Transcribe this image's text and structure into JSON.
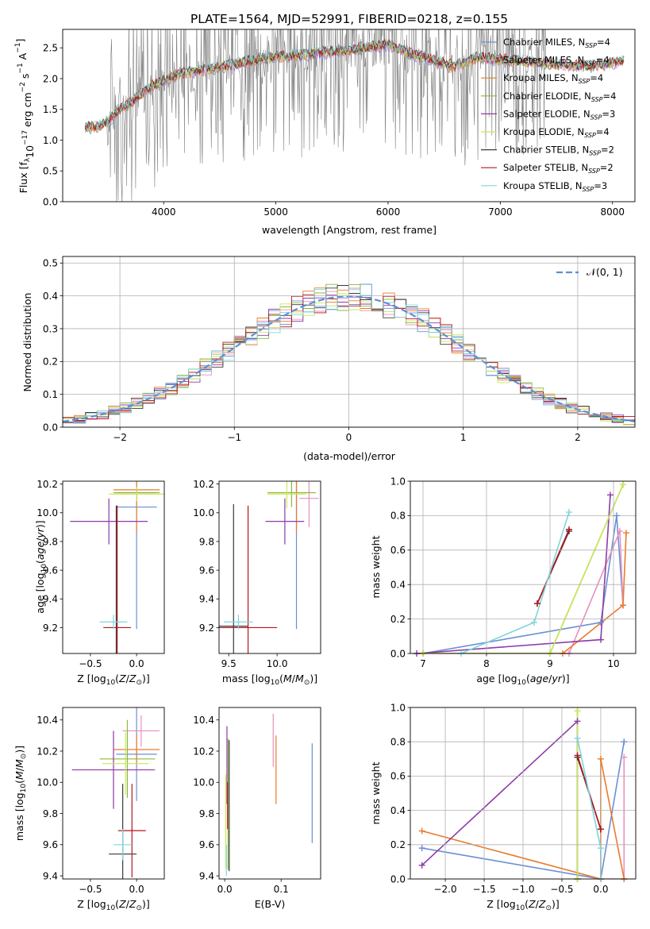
{
  "figure_title": "PLATE=1564, MJD=52991, FIBERID=0218, z=0.155",
  "colors": {
    "chabrier_miles": "#6a8fd6",
    "salpeter_miles": "#e88fc0",
    "kroupa_miles": "#ea7a2c",
    "chabrier_elodie": "#8fb83a",
    "salpeter_elodie": "#8e3aa6",
    "kroupa_elodie": "#c8e85a",
    "chabrier_stelib": "#3a3a3a",
    "salpeter_stelib": "#b5161c",
    "kroupa_stelib": "#7fd6dd",
    "data": "#808080",
    "normal": "#5b8fd6"
  },
  "chart_data": [
    {
      "id": "spectrum",
      "type": "line",
      "xlabel": "wavelength [Angstrom, rest frame]",
      "ylabel": "Flux [f_λ 10^-17 erg cm^-2 s^-1 A^-1]",
      "xlim": [
        3100,
        8200
      ],
      "ylim": [
        0,
        2.8
      ],
      "xticks": [
        4000,
        5000,
        6000,
        7000,
        8000
      ],
      "yticks": [
        0.0,
        0.5,
        1.0,
        1.5,
        2.0,
        2.5
      ],
      "legend_position": "top-right",
      "legend": [
        {
          "key": "chabrier_miles",
          "label": "Chabrier MILES, N",
          "sub": "SSP",
          "suffix": "=4"
        },
        {
          "key": "salpeter_miles",
          "label": "Salpeter MILES, N",
          "sub": "SSP",
          "suffix": "=4"
        },
        {
          "key": "kroupa_miles",
          "label": "Kroupa MILES, N",
          "sub": "SSP",
          "suffix": "=4"
        },
        {
          "key": "chabrier_elodie",
          "label": "Chabrier ELODIE, N",
          "sub": "SSP",
          "suffix": "=4"
        },
        {
          "key": "salpeter_elodie",
          "label": "Salpeter ELODIE, N",
          "sub": "SSP",
          "suffix": "=3"
        },
        {
          "key": "kroupa_elodie",
          "label": "Kroupa ELODIE, N",
          "sub": "SSP",
          "suffix": "=4"
        },
        {
          "key": "chabrier_stelib",
          "label": "Chabrier STELIB, N",
          "sub": "SSP",
          "suffix": "=2"
        },
        {
          "key": "salpeter_stelib",
          "label": "Salpeter STELIB, N",
          "sub": "SSP",
          "suffix": "=2"
        },
        {
          "key": "kroupa_stelib",
          "label": "Kroupa STELIB, N",
          "sub": "SSP",
          "suffix": "=3"
        }
      ],
      "continuum": {
        "x": [
          3300,
          3400,
          3500,
          3600,
          3700,
          3800,
          3900,
          4000,
          4200,
          4400,
          4600,
          4800,
          5000,
          5200,
          5400,
          5600,
          5800,
          6000,
          6200,
          6400,
          6600,
          6800,
          7000,
          7200,
          7400,
          7600,
          7800,
          8000,
          8100
        ],
        "y": [
          1.22,
          1.2,
          1.3,
          1.48,
          1.6,
          1.75,
          1.88,
          1.98,
          2.1,
          2.15,
          2.22,
          2.3,
          2.35,
          2.38,
          2.42,
          2.45,
          2.5,
          2.55,
          2.4,
          2.3,
          2.2,
          2.35,
          2.3,
          2.28,
          2.25,
          2.22,
          2.2,
          2.25,
          2.3
        ]
      },
      "data_noise_range": [
        3500,
        7400
      ]
    },
    {
      "id": "residuals",
      "type": "bar",
      "xlabel": "(data-model)/error",
      "ylabel": "Normed distribution",
      "xlim": [
        -2.5,
        2.5
      ],
      "ylim": [
        0,
        0.52
      ],
      "xticks": [
        -2,
        -1,
        0,
        1,
        2
      ],
      "yticks": [
        0.0,
        0.1,
        0.2,
        0.3,
        0.4,
        0.5
      ],
      "grid": true,
      "legend_position": "top-right",
      "legend_label": "𝒩(0, 1)",
      "bin_width": 0.1
    },
    {
      "id": "z_age",
      "type": "scatter",
      "xlabel": "Z [log10(Z/Z⊙)]",
      "ylabel": "age [log10(age/yr)]",
      "xlim": [
        -0.8,
        0.3
      ],
      "ylim": [
        9.02,
        10.22
      ],
      "xticks": [
        -0.5,
        0.0
      ],
      "yticks": [
        9.2,
        9.4,
        9.6,
        9.8,
        10.0,
        10.2
      ],
      "points": [
        {
          "key": "chabrier_miles",
          "x": 0.0,
          "xerr": 0.22,
          "y": 10.04,
          "yerr": 0.85
        },
        {
          "key": "salpeter_miles",
          "x": 0.0,
          "xerr": 0.2,
          "y": 10.14,
          "yerr": 0.05
        },
        {
          "key": "kroupa_miles",
          "x": 0.0,
          "xerr": 0.25,
          "y": 10.16,
          "yerr": 0.3
        },
        {
          "key": "chabrier_elodie",
          "x": 0.0,
          "xerr": 0.25,
          "y": 10.14,
          "yerr": 0.05
        },
        {
          "key": "salpeter_elodie",
          "x": -0.3,
          "xerr": 0.42,
          "y": 9.94,
          "yerr": 0.16
        },
        {
          "key": "kroupa_elodie",
          "x": 0.0,
          "xerr": 0.3,
          "y": 10.13,
          "yerr": 0.05
        },
        {
          "key": "chabrier_stelib",
          "x": -0.22,
          "xerr": 0.0,
          "y": 9.2,
          "yerr": 0.85
        },
        {
          "key": "salpeter_stelib",
          "x": -0.21,
          "xerr": 0.15,
          "y": 9.2,
          "yerr": 0.85
        },
        {
          "key": "kroupa_stelib",
          "x": -0.25,
          "xerr": 0.15,
          "y": 9.24,
          "yerr": 0.05
        }
      ]
    },
    {
      "id": "mass_age",
      "type": "scatter",
      "xlabel": "mass [log10(M/M⊙)]",
      "ylabel": "",
      "xlim": [
        9.4,
        10.45
      ],
      "ylim": [
        9.02,
        10.22
      ],
      "xticks": [
        9.5,
        10.0
      ],
      "yticks": [
        9.2,
        9.4,
        9.6,
        9.8,
        10.0,
        10.2
      ],
      "points": [
        {
          "key": "chabrier_miles",
          "x": 10.2,
          "xerr": 0.0,
          "y": 10.04,
          "yerr": 0.85
        },
        {
          "key": "salpeter_miles",
          "x": 10.33,
          "xerr": 0.1,
          "y": 10.1,
          "yerr": 0.2
        },
        {
          "key": "kroupa_miles",
          "x": 10.2,
          "xerr": 0.0,
          "y": 10.16,
          "yerr": 0.3
        },
        {
          "key": "chabrier_elodie",
          "x": 10.15,
          "xerr": 0.25,
          "y": 10.14,
          "yerr": 0.1
        },
        {
          "key": "salpeter_elodie",
          "x": 10.08,
          "xerr": 0.2,
          "y": 9.94,
          "yerr": 0.16
        },
        {
          "key": "kroupa_elodie",
          "x": 10.1,
          "xerr": 0.2,
          "y": 10.13,
          "yerr": 0.1
        },
        {
          "key": "chabrier_stelib",
          "x": 9.55,
          "xerr": 0.15,
          "y": 9.21,
          "yerr": 0.85
        },
        {
          "key": "salpeter_stelib",
          "x": 9.7,
          "xerr": 0.3,
          "y": 9.2,
          "yerr": 0.85
        },
        {
          "key": "kroupa_stelib",
          "x": 9.6,
          "xerr": 0.15,
          "y": 9.24,
          "yerr": 0.05
        }
      ]
    },
    {
      "id": "age_weight",
      "type": "line",
      "xlabel": "age [log10(age/yr)]",
      "ylabel": "mass weight",
      "xlim": [
        6.8,
        10.35
      ],
      "ylim": [
        0,
        1.0
      ],
      "xticks": [
        7,
        8,
        9,
        10
      ],
      "yticks": [
        0.0,
        0.2,
        0.4,
        0.6,
        0.8,
        1.0
      ],
      "grid": true,
      "series": [
        {
          "key": "chabrier_miles",
          "x": [
            7.0,
            9.8,
            10.05,
            10.15
          ],
          "y": [
            0.0,
            0.18,
            0.8,
            0.28
          ]
        },
        {
          "key": "salpeter_miles",
          "x": [
            7.0,
            9.3,
            10.1,
            10.15
          ],
          "y": [
            0.0,
            0.0,
            0.71,
            0.28
          ]
        },
        {
          "key": "kroupa_miles",
          "x": [
            7.0,
            9.2,
            10.15,
            10.2
          ],
          "y": [
            0.0,
            0.0,
            0.28,
            0.7
          ]
        },
        {
          "key": "chabrier_elodie",
          "x": [
            7.0,
            9.0,
            10.15
          ],
          "y": [
            0.0,
            0.0,
            0.98
          ]
        },
        {
          "key": "salpeter_elodie",
          "x": [
            6.9,
            9.8,
            9.95
          ],
          "y": [
            0.0,
            0.08,
            0.92
          ]
        },
        {
          "key": "kroupa_elodie",
          "x": [
            7.0,
            9.0,
            10.15
          ],
          "y": [
            0.0,
            0.0,
            0.98
          ]
        },
        {
          "key": "chabrier_stelib",
          "x": [
            8.8,
            9.3
          ],
          "y": [
            0.29,
            0.71
          ]
        },
        {
          "key": "salpeter_stelib",
          "x": [
            8.8,
            9.3
          ],
          "y": [
            0.29,
            0.72
          ]
        },
        {
          "key": "kroupa_stelib",
          "x": [
            7.6,
            8.75,
            9.3
          ],
          "y": [
            0.0,
            0.18,
            0.82
          ]
        }
      ]
    },
    {
      "id": "z_mass",
      "type": "scatter",
      "xlabel": "Z [log10(Z/Z⊙)]",
      "ylabel": "mass [log10(M/M⊙)]",
      "xlim": [
        -0.8,
        0.3
      ],
      "ylim": [
        9.38,
        10.48
      ],
      "xticks": [
        -0.5,
        0.0
      ],
      "yticks": [
        9.4,
        9.6,
        9.8,
        10.0,
        10.2,
        10.4
      ],
      "points": [
        {
          "key": "chabrier_miles",
          "x": 0.0,
          "xerr": 0.22,
          "y": 10.18,
          "yerr": 0.3
        },
        {
          "key": "salpeter_miles",
          "x": 0.05,
          "xerr": 0.2,
          "y": 10.33,
          "yerr": 0.1
        },
        {
          "key": "kroupa_miles",
          "x": 0.0,
          "xerr": 0.25,
          "y": 10.21,
          "yerr": 0.1
        },
        {
          "key": "chabrier_elodie",
          "x": -0.1,
          "xerr": 0.3,
          "y": 10.15,
          "yerr": 0.25
        },
        {
          "key": "salpeter_elodie",
          "x": -0.25,
          "xerr": 0.45,
          "y": 10.08,
          "yerr": 0.25
        },
        {
          "key": "kroupa_elodie",
          "x": -0.12,
          "xerr": 0.25,
          "y": 10.12,
          "yerr": 0.2
        },
        {
          "key": "chabrier_stelib",
          "x": -0.15,
          "xerr": 0.15,
          "y": 9.54,
          "yerr": 0.45
        },
        {
          "key": "salpeter_stelib",
          "x": -0.05,
          "xerr": 0.15,
          "y": 9.69,
          "yerr": 0.3
        },
        {
          "key": "kroupa_stelib",
          "x": -0.15,
          "xerr": 0.1,
          "y": 9.6,
          "yerr": 0.1
        }
      ]
    },
    {
      "id": "ebv_mass",
      "type": "scatter",
      "xlabel": "E(B-V)",
      "ylabel": "",
      "xlim": [
        -0.01,
        0.17
      ],
      "ylim": [
        9.38,
        10.48
      ],
      "xticks": [
        0.0,
        0.1
      ],
      "yticks": [
        9.4,
        9.6,
        9.8,
        10.0,
        10.2,
        10.4
      ],
      "points": [
        {
          "key": "chabrier_miles",
          "x": 0.155,
          "y": 9.93,
          "yerr": 0.32
        },
        {
          "key": "salpeter_miles",
          "x": 0.086,
          "y": 10.27,
          "yerr": 0.17
        },
        {
          "key": "kroupa_miles",
          "x": 0.091,
          "y": 10.08,
          "yerr": 0.22
        },
        {
          "key": "chabrier_elodie",
          "x": 0.006,
          "y": 9.86,
          "yerr": 0.42
        },
        {
          "key": "salpeter_elodie",
          "x": 0.004,
          "y": 10.11,
          "yerr": 0.25
        },
        {
          "key": "kroupa_elodie",
          "x": 0.002,
          "y": 9.75,
          "yerr": 0.3
        },
        {
          "key": "chabrier_stelib",
          "x": 0.008,
          "y": 9.85,
          "yerr": 0.42
        },
        {
          "key": "salpeter_stelib",
          "x": 0.005,
          "y": 9.85,
          "yerr": 0.15
        },
        {
          "key": "kroupa_stelib",
          "x": 0.003,
          "y": 9.5,
          "yerr": 0.1
        }
      ]
    },
    {
      "id": "z_weight",
      "type": "line",
      "xlabel": "Z [log10(Z/Z⊙)]",
      "ylabel": "mass weight",
      "xlim": [
        -2.45,
        0.45
      ],
      "ylim": [
        0,
        1.0
      ],
      "xticks": [
        -2.0,
        -1.5,
        -1.0,
        -0.5,
        0.0
      ],
      "yticks": [
        0.0,
        0.2,
        0.4,
        0.6,
        0.8,
        1.0
      ],
      "grid": true,
      "series": [
        {
          "key": "chabrier_miles",
          "x": [
            -2.3,
            0.0,
            0.3
          ],
          "y": [
            0.18,
            0.0,
            0.8
          ]
        },
        {
          "key": "salpeter_miles",
          "x": [
            0.0,
            0.3,
            0.3
          ],
          "y": [
            0.0,
            0.0,
            0.71
          ]
        },
        {
          "key": "kroupa_miles",
          "x": [
            -2.3,
            0.0,
            0.0,
            0.3
          ],
          "y": [
            0.28,
            0.0,
            0.7,
            0.0
          ]
        },
        {
          "key": "chabrier_elodie",
          "x": [
            -0.3,
            -0.3
          ],
          "y": [
            0.0,
            0.98
          ]
        },
        {
          "key": "salpeter_elodie",
          "x": [
            -2.3,
            -0.3,
            -0.3
          ],
          "y": [
            0.08,
            0.92,
            0.0
          ]
        },
        {
          "key": "kroupa_elodie",
          "x": [
            -0.3,
            -0.3
          ],
          "y": [
            0.0,
            0.98
          ]
        },
        {
          "key": "chabrier_stelib",
          "x": [
            -0.3,
            0.0
          ],
          "y": [
            0.71,
            0.29
          ]
        },
        {
          "key": "salpeter_stelib",
          "x": [
            -0.3,
            0.0
          ],
          "y": [
            0.72,
            0.29
          ]
        },
        {
          "key": "kroupa_stelib",
          "x": [
            -0.3,
            0.0,
            0.0
          ],
          "y": [
            0.82,
            0.18,
            0.0
          ]
        }
      ]
    }
  ]
}
